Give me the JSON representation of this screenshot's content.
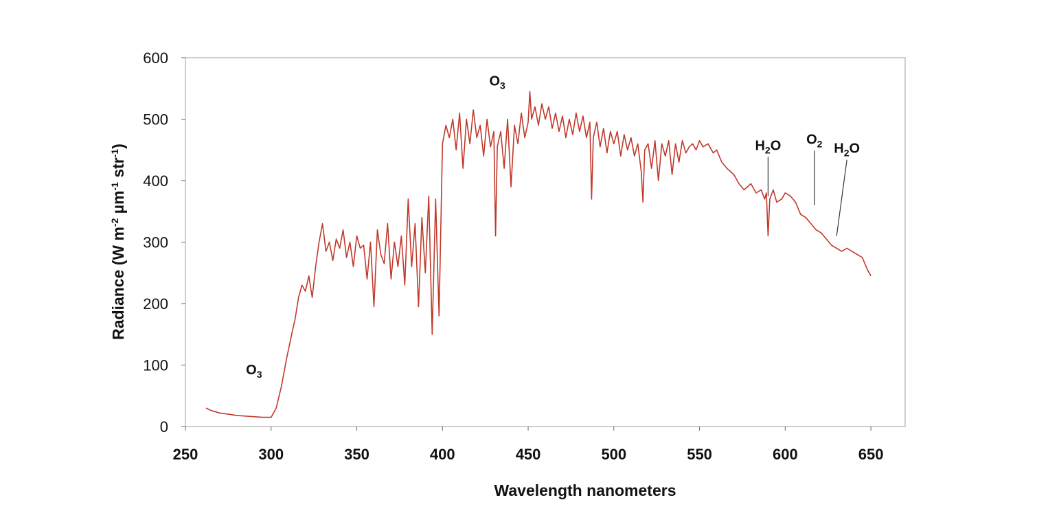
{
  "chart_data": {
    "type": "line",
    "xlabel": "Wavelength nanometers",
    "ylabel_parts": [
      "Radiance (W m",
      "-2",
      " µm",
      "-1",
      " str",
      "-1",
      ")"
    ],
    "xlim": [
      250,
      670
    ],
    "ylim": [
      0,
      600
    ],
    "x_ticks": [
      "250",
      "300",
      "350",
      "400",
      "450",
      "500",
      "550",
      "600",
      "650"
    ],
    "y_ticks": [
      "0",
      "100",
      "200",
      "300",
      "400",
      "500",
      "600"
    ],
    "grid": false,
    "line_color": "#c0392b",
    "series": [
      {
        "x": [
          262,
          265,
          270,
          275,
          280,
          285,
          290,
          295,
          300,
          303,
          306,
          309,
          312,
          314,
          316,
          318,
          320,
          322,
          324,
          326,
          328,
          330,
          332,
          334,
          336,
          338,
          340,
          342,
          344,
          346,
          348,
          350,
          352,
          354,
          356,
          358,
          360,
          362,
          364,
          366,
          368,
          370,
          372,
          374,
          376,
          378,
          380,
          382,
          384,
          386,
          388,
          390,
          392,
          394,
          396,
          398,
          400,
          402,
          404,
          406,
          408,
          410,
          412,
          414,
          416,
          418,
          420,
          422,
          424,
          426,
          428,
          430,
          431,
          432,
          434,
          436,
          438,
          440,
          442,
          444,
          446,
          448,
          450,
          451,
          452,
          454,
          456,
          458,
          460,
          462,
          464,
          466,
          468,
          470,
          472,
          474,
          476,
          478,
          480,
          482,
          484,
          486,
          487,
          488,
          490,
          492,
          494,
          496,
          498,
          500,
          502,
          504,
          506,
          508,
          510,
          512,
          514,
          516,
          517,
          518,
          520,
          522,
          524,
          526,
          528,
          530,
          532,
          534,
          536,
          538,
          540,
          542,
          544,
          546,
          548,
          550,
          552,
          555,
          558,
          560,
          563,
          566,
          570,
          573,
          576,
          580,
          583,
          586,
          588,
          589,
          590,
          591,
          593,
          595,
          598,
          600,
          603,
          606,
          609,
          612,
          615,
          618,
          621,
          624,
          627,
          630,
          633,
          636,
          639,
          642,
          645,
          648,
          650
        ],
        "y": [
          30,
          26,
          22,
          20,
          18,
          17,
          16,
          15,
          15,
          30,
          65,
          110,
          150,
          175,
          210,
          230,
          220,
          245,
          210,
          260,
          300,
          330,
          285,
          300,
          270,
          305,
          290,
          320,
          275,
          300,
          260,
          310,
          290,
          295,
          240,
          300,
          195,
          320,
          280,
          265,
          330,
          240,
          300,
          260,
          310,
          230,
          370,
          260,
          330,
          195,
          340,
          250,
          375,
          150,
          370,
          180,
          460,
          490,
          470,
          500,
          450,
          510,
          420,
          500,
          460,
          515,
          470,
          490,
          440,
          500,
          455,
          480,
          310,
          455,
          480,
          420,
          500,
          390,
          490,
          460,
          510,
          470,
          495,
          545,
          500,
          520,
          490,
          525,
          500,
          520,
          485,
          510,
          480,
          505,
          470,
          500,
          475,
          510,
          480,
          505,
          470,
          495,
          370,
          470,
          495,
          455,
          485,
          445,
          480,
          460,
          480,
          440,
          475,
          450,
          470,
          440,
          460,
          415,
          365,
          450,
          460,
          420,
          465,
          400,
          460,
          440,
          465,
          410,
          460,
          430,
          465,
          445,
          455,
          460,
          450,
          465,
          455,
          460,
          445,
          450,
          430,
          420,
          410,
          395,
          385,
          395,
          380,
          385,
          370,
          380,
          310,
          370,
          385,
          365,
          370,
          380,
          375,
          365,
          345,
          340,
          330,
          320,
          315,
          305,
          295,
          290,
          285,
          290,
          285,
          280,
          275,
          255,
          245
        ]
      }
    ],
    "annotations": [
      {
        "base": "O",
        "sub": "3",
        "x": 290,
        "y": 85
      },
      {
        "base": "O",
        "sub": "3",
        "x": 432,
        "y": 555
      },
      {
        "base": "H",
        "sub": "2",
        "tail": "O",
        "x": 590,
        "y": 450,
        "line_to": [
          590,
          375
        ]
      },
      {
        "base": "O",
        "sub": "2",
        "x": 617,
        "y": 460,
        "line_to": [
          617,
          360
        ]
      },
      {
        "base": "H",
        "sub": "2",
        "tail": "O",
        "x": 636,
        "y": 445,
        "line_to": [
          630,
          310
        ]
      }
    ]
  }
}
